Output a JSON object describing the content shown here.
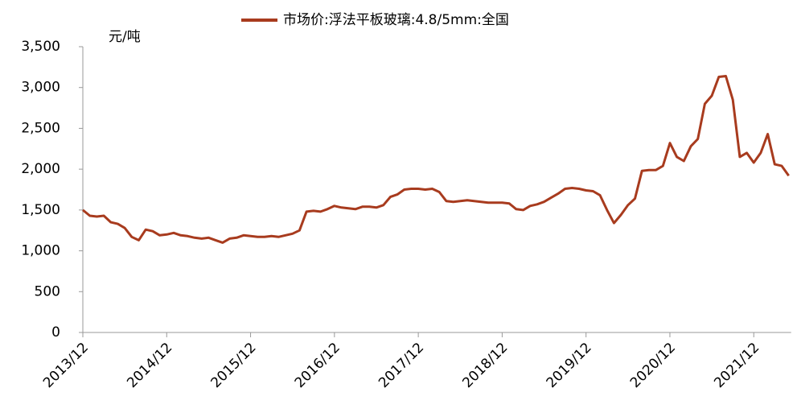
{
  "chart_data": {
    "type": "line",
    "y_label": "元/吨",
    "x": [
      "2013/12",
      "2014/01",
      "2014/02",
      "2014/03",
      "2014/04",
      "2014/05",
      "2014/06",
      "2014/07",
      "2014/08",
      "2014/09",
      "2014/10",
      "2014/11",
      "2014/12",
      "2015/01",
      "2015/02",
      "2015/03",
      "2015/04",
      "2015/05",
      "2015/06",
      "2015/07",
      "2015/08",
      "2015/09",
      "2015/10",
      "2015/11",
      "2015/12",
      "2016/01",
      "2016/02",
      "2016/03",
      "2016/04",
      "2016/05",
      "2016/06",
      "2016/07",
      "2016/08",
      "2016/09",
      "2016/10",
      "2016/11",
      "2016/12",
      "2017/01",
      "2017/02",
      "2017/03",
      "2017/04",
      "2017/05",
      "2017/06",
      "2017/07",
      "2017/08",
      "2017/09",
      "2017/10",
      "2017/11",
      "2017/12",
      "2018/01",
      "2018/02",
      "2018/03",
      "2018/04",
      "2018/05",
      "2018/06",
      "2018/07",
      "2018/08",
      "2018/09",
      "2018/10",
      "2018/11",
      "2018/12",
      "2019/01",
      "2019/02",
      "2019/03",
      "2019/04",
      "2019/05",
      "2019/06",
      "2019/07",
      "2019/08",
      "2019/09",
      "2019/10",
      "2019/11",
      "2019/12",
      "2020/01",
      "2020/02",
      "2020/03",
      "2020/04",
      "2020/05",
      "2020/06",
      "2020/07",
      "2020/08",
      "2020/09",
      "2020/10",
      "2020/11",
      "2020/12",
      "2021/01",
      "2021/02",
      "2021/03",
      "2021/04",
      "2021/05",
      "2021/06",
      "2021/07",
      "2021/08",
      "2021/09",
      "2021/10",
      "2021/11",
      "2021/12",
      "2022/01",
      "2022/02",
      "2022/03",
      "2022/04",
      "2022/05"
    ],
    "series": [
      {
        "name": "市场价:浮法平板玻璃:4.8/5mm:全国",
        "color": "#a83b1e",
        "values": [
          1500,
          1430,
          1420,
          1430,
          1350,
          1330,
          1280,
          1170,
          1130,
          1260,
          1240,
          1190,
          1200,
          1220,
          1190,
          1180,
          1160,
          1150,
          1160,
          1130,
          1100,
          1150,
          1160,
          1190,
          1180,
          1170,
          1170,
          1180,
          1170,
          1190,
          1210,
          1250,
          1480,
          1490,
          1480,
          1510,
          1550,
          1530,
          1520,
          1510,
          1540,
          1540,
          1530,
          1560,
          1660,
          1690,
          1750,
          1760,
          1760,
          1750,
          1760,
          1720,
          1610,
          1600,
          1610,
          1620,
          1610,
          1600,
          1590,
          1590,
          1590,
          1580,
          1510,
          1500,
          1550,
          1570,
          1600,
          1650,
          1700,
          1760,
          1770,
          1760,
          1740,
          1730,
          1680,
          1500,
          1340,
          1440,
          1560,
          1640,
          1980,
          1990,
          1990,
          2040,
          2320,
          2150,
          2100,
          2280,
          2370,
          2800,
          2900,
          3130,
          3140,
          2850,
          2150,
          2200,
          2080,
          2200,
          2430,
          2060,
          2040,
          1920
        ]
      }
    ],
    "xticks": [
      "2013/12",
      "2014/12",
      "2015/12",
      "2016/12",
      "2017/12",
      "2018/12",
      "2019/12",
      "2020/12",
      "2021/12"
    ],
    "ylim": [
      0,
      3500
    ],
    "yticks": [
      0,
      500,
      {
        "value": 1000,
        "label": "1,000"
      },
      {
        "value": 1500,
        "label": "1,500"
      },
      {
        "value": 2000,
        "label": "2,000"
      },
      {
        "value": 2500,
        "label": "2,500"
      },
      {
        "value": 3000,
        "label": "3,000"
      },
      {
        "value": 3500,
        "label": "3,500"
      }
    ],
    "legend": "top"
  }
}
